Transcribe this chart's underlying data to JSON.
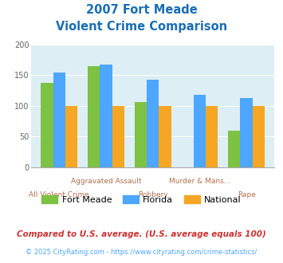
{
  "title_line1": "2007 Fort Meade",
  "title_line2": "Violent Crime Comparison",
  "categories": [
    "All Violent Crime",
    "Aggravated Assault",
    "Robbery",
    "Murder & Mans...",
    "Rape"
  ],
  "fort_meade": [
    137,
    165,
    106,
    0,
    60
  ],
  "florida": [
    155,
    167,
    143,
    118,
    113
  ],
  "national": [
    100,
    100,
    100,
    100,
    100
  ],
  "color_fort_meade": "#7dc242",
  "color_florida": "#4da6ff",
  "color_national": "#f5a623",
  "ylim": [
    0,
    200
  ],
  "yticks": [
    0,
    50,
    100,
    150,
    200
  ],
  "bg_color": "#ddeef5",
  "title_color": "#1a6eb5",
  "xlabel_top_color": "#b07050",
  "xlabel_bot_color": "#b07050",
  "legend_label1": "Fort Meade",
  "legend_label2": "Florida",
  "legend_label3": "National",
  "footnote1": "Compared to U.S. average. (U.S. average equals 100)",
  "footnote2": "© 2025 CityRating.com - https://www.cityrating.com/crime-statistics/",
  "footnote1_color": "#cc3333",
  "footnote2_color": "#4da6ff"
}
